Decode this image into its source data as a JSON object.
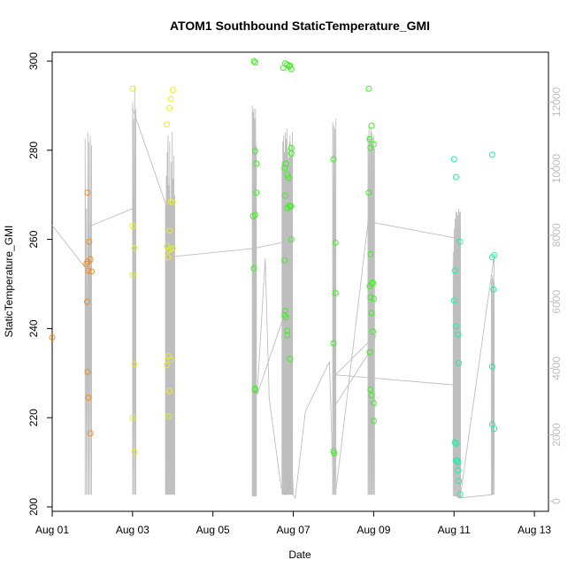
{
  "chart_data": {
    "type": "scatter",
    "title": "ATOM1 Southbound StaticTemperature_GMI",
    "xlabel": "Date",
    "ylabel": "StaticTemperature_GMI",
    "xlim": [
      0,
      12.35
    ],
    "ylim": [
      199,
      302
    ],
    "x_ticks": [
      {
        "value": 0,
        "label": "Aug 01"
      },
      {
        "value": 2,
        "label": "Aug 03"
      },
      {
        "value": 4,
        "label": "Aug 05"
      },
      {
        "value": 6,
        "label": "Aug 07"
      },
      {
        "value": 8,
        "label": "Aug 09"
      },
      {
        "value": 10,
        "label": "Aug 11"
      },
      {
        "value": 12,
        "label": "Aug 13"
      }
    ],
    "y_ticks": [
      200,
      220,
      240,
      260,
      280,
      300
    ],
    "y2_ticks": [
      0,
      2000,
      4000,
      6000,
      8000,
      10000,
      12000
    ],
    "y2lim": [
      -300,
      13500
    ],
    "grid": false,
    "legend": "none",
    "point_colors": [
      "#f08c1e",
      "#e6f01e",
      "#3cf01e",
      "#1ef0a0"
    ],
    "line_color": "#bebebe",
    "series": [
      {
        "color": "#f08c1e",
        "points": [
          [
            0.0,
            238.0
          ],
          [
            0.88,
            270.5
          ],
          [
            0.88,
            255.0
          ],
          [
            0.92,
            259.5
          ],
          [
            0.95,
            255.5
          ],
          [
            0.85,
            254.5
          ],
          [
            0.9,
            253.0
          ],
          [
            0.98,
            252.8
          ],
          [
            0.87,
            246.0
          ],
          [
            0.88,
            230.3
          ],
          [
            0.9,
            224.5
          ],
          [
            0.95,
            216.5
          ]
        ]
      },
      {
        "color": "#e6f01e",
        "points": [
          [
            2.0,
            293.8
          ],
          [
            2.0,
            263.0
          ],
          [
            2.05,
            258.0
          ],
          [
            2.0,
            252.0
          ],
          [
            2.05,
            232.0
          ],
          [
            2.0,
            220.0
          ],
          [
            2.05,
            212.3
          ],
          [
            2.85,
            285.8
          ],
          [
            2.95,
            291.5
          ],
          [
            3.0,
            293.5
          ],
          [
            2.92,
            289.5
          ],
          [
            2.95,
            268.5
          ],
          [
            3.0,
            268.3
          ],
          [
            2.92,
            262.0
          ],
          [
            2.85,
            258.5
          ],
          [
            2.9,
            257.5
          ],
          [
            2.95,
            257.8
          ],
          [
            3.0,
            258.0
          ],
          [
            2.88,
            256.0
          ],
          [
            2.9,
            233.8
          ],
          [
            2.95,
            233.0
          ],
          [
            2.85,
            231.8
          ],
          [
            2.92,
            226.0
          ],
          [
            2.9,
            220.3
          ]
        ]
      },
      {
        "color": "#3cf01e",
        "points": [
          [
            5.02,
            300.0
          ],
          [
            5.05,
            299.7
          ],
          [
            5.05,
            279.8
          ],
          [
            5.08,
            277.0
          ],
          [
            5.08,
            270.5
          ],
          [
            5.0,
            265.2
          ],
          [
            5.05,
            265.5
          ],
          [
            5.02,
            253.5
          ],
          [
            5.05,
            226.5
          ],
          [
            5.05,
            226.2
          ],
          [
            5.75,
            298.5
          ],
          [
            5.8,
            299.5
          ],
          [
            5.85,
            299.2
          ],
          [
            5.9,
            298.8
          ],
          [
            5.92,
            299.0
          ],
          [
            5.95,
            298.2
          ],
          [
            5.95,
            280.5
          ],
          [
            5.95,
            279.3
          ],
          [
            5.82,
            277.0
          ],
          [
            5.78,
            276.0
          ],
          [
            5.85,
            274.5
          ],
          [
            5.88,
            273.8
          ],
          [
            5.8,
            269.8
          ],
          [
            5.95,
            267.5
          ],
          [
            5.92,
            267.3
          ],
          [
            5.85,
            267.0
          ],
          [
            5.9,
            267.5
          ],
          [
            5.78,
            255.3
          ],
          [
            5.95,
            260.0
          ],
          [
            5.8,
            244.0
          ],
          [
            5.78,
            243.0
          ],
          [
            5.82,
            242.5
          ],
          [
            5.85,
            239.5
          ],
          [
            5.85,
            238.5
          ],
          [
            5.92,
            233.2
          ],
          [
            7.0,
            278.0
          ],
          [
            7.05,
            259.3
          ],
          [
            7.05,
            248.0
          ],
          [
            7.0,
            236.7
          ],
          [
            7.0,
            212.5
          ],
          [
            7.02,
            212.0
          ],
          [
            7.88,
            293.8
          ],
          [
            7.95,
            285.5
          ],
          [
            7.9,
            282.5
          ],
          [
            8.0,
            281.3
          ],
          [
            7.92,
            280.5
          ],
          [
            7.88,
            270.5
          ],
          [
            7.92,
            256.7
          ],
          [
            7.95,
            250.0
          ],
          [
            7.9,
            249.5
          ],
          [
            7.98,
            250.3
          ],
          [
            7.92,
            247.0
          ],
          [
            8.0,
            246.7
          ],
          [
            7.95,
            243.5
          ],
          [
            7.98,
            239.3
          ],
          [
            7.9,
            234.7
          ],
          [
            7.92,
            226.3
          ],
          [
            7.95,
            225.0
          ],
          [
            8.0,
            223.3
          ],
          [
            8.0,
            219.3
          ]
        ]
      },
      {
        "color": "#1ef0a0",
        "points": [
          [
            10.0,
            278.0
          ],
          [
            10.05,
            274.0
          ],
          [
            10.02,
            253.0
          ],
          [
            10.0,
            246.3
          ],
          [
            10.05,
            240.5
          ],
          [
            10.1,
            238.7
          ],
          [
            10.12,
            232.3
          ],
          [
            10.15,
            259.5
          ],
          [
            10.02,
            214.5
          ],
          [
            10.05,
            214.2
          ],
          [
            10.05,
            210.5
          ],
          [
            10.08,
            210.3
          ],
          [
            10.1,
            210.0
          ],
          [
            10.1,
            208.2
          ],
          [
            10.12,
            205.8
          ],
          [
            10.15,
            202.8
          ],
          [
            10.95,
            279.0
          ],
          [
            10.95,
            256.0
          ],
          [
            11.0,
            256.5
          ],
          [
            10.98,
            248.8
          ],
          [
            10.95,
            231.5
          ],
          [
            10.95,
            218.5
          ],
          [
            11.0,
            217.5
          ]
        ]
      }
    ],
    "secondary_line": {
      "path": [
        [
          0.0,
          8300
        ],
        [
          0.9,
          6900
        ],
        [
          0.9,
          8250
        ],
        [
          2.0,
          8800
        ],
        [
          2.0,
          11800
        ],
        [
          2.95,
          8500
        ],
        [
          2.95,
          7350
        ],
        [
          5.0,
          7600
        ],
        [
          5.8,
          7800
        ],
        [
          5.8,
          200
        ],
        [
          5.7,
          400
        ],
        [
          5.4,
          3100
        ],
        [
          5.3,
          7300
        ],
        [
          5.1,
          3200
        ],
        [
          5.8,
          5700
        ],
        [
          6.0,
          200
        ],
        [
          6.05,
          100
        ],
        [
          6.3,
          2700
        ],
        [
          6.9,
          4200
        ],
        [
          7.0,
          200
        ],
        [
          7.05,
          2900
        ],
        [
          7.9,
          4500
        ],
        [
          8.0,
          4800
        ],
        [
          8.05,
          5000
        ],
        [
          7.05,
          3800
        ],
        [
          10.0,
          3500
        ],
        [
          10.05,
          7500
        ],
        [
          10.1,
          200
        ],
        [
          10.15,
          100
        ],
        [
          11.0,
          7400
        ],
        [
          10.95,
          4200
        ],
        [
          10.95,
          200
        ],
        [
          10.1,
          100
        ],
        [
          10.05,
          200
        ],
        [
          10.1,
          7900
        ],
        [
          7.9,
          8400
        ],
        [
          7.9,
          8800
        ],
        [
          7.05,
          200
        ]
      ],
      "spikes": [
        {
          "x0": 0.82,
          "x1": 0.98,
          "hi": [
            10900,
            8800,
            11100,
            10800,
            11000,
            10700
          ],
          "lo": 200
        },
        {
          "x0": 2.0,
          "x1": 2.08,
          "hi": [
            12000,
            11500,
            12500,
            11800
          ],
          "lo": 200
        },
        {
          "x0": 2.82,
          "x1": 3.05,
          "hi": [
            8900,
            9800,
            10500,
            11000,
            9500,
            10800,
            9000,
            10200,
            11100,
            9700,
            10400,
            9200
          ],
          "lo": 200
        },
        {
          "x0": 4.98,
          "x1": 5.08,
          "hi": [
            11900,
            11700,
            11800,
            11500,
            11800,
            10700
          ],
          "lo": 150
        },
        {
          "x0": 5.72,
          "x1": 5.98,
          "hi": [
            10200,
            10800,
            11000,
            10500,
            11100,
            10900,
            11200,
            10600,
            10300,
            10800,
            11000,
            10400,
            10700,
            11100
          ],
          "lo": 200
        },
        {
          "x0": 6.98,
          "x1": 7.06,
          "hi": [
            11400,
            11300,
            11200,
            11500
          ],
          "lo": 200
        },
        {
          "x0": 7.86,
          "x1": 8.02,
          "hi": [
            11000,
            11300,
            10900,
            11200,
            11100,
            10800,
            11000,
            10600
          ],
          "lo": 200
        },
        {
          "x0": 9.98,
          "x1": 10.16,
          "hi": [
            7500,
            8200,
            8500,
            8700,
            8700,
            8600,
            8800,
            8700,
            8700
          ],
          "lo": 150
        },
        {
          "x0": 10.93,
          "x1": 11.0,
          "hi": [
            6700,
            6800,
            6700,
            6600
          ],
          "lo": 200
        }
      ]
    }
  }
}
